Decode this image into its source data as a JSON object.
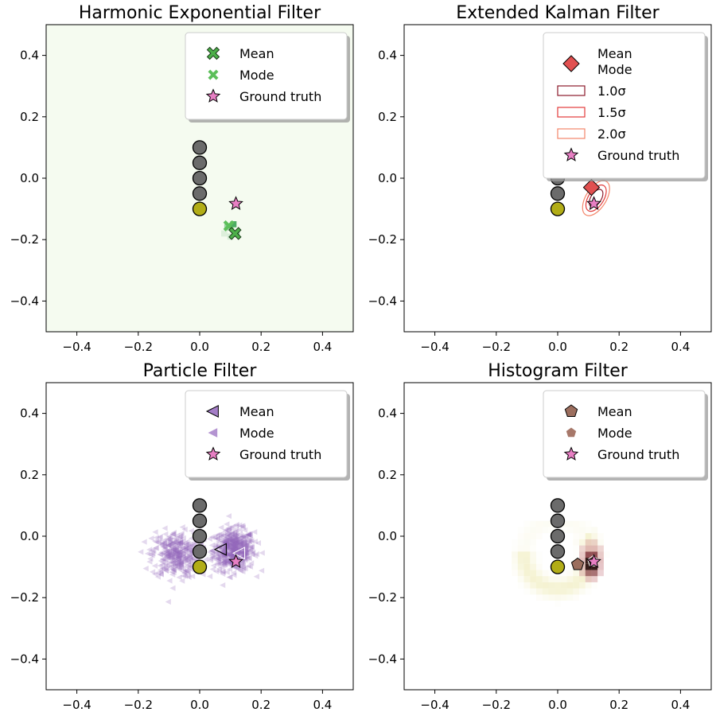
{
  "chart_data": [
    {
      "type": "scatter",
      "title": "Harmonic Exponential Filter",
      "xlim": [
        -0.5,
        0.5
      ],
      "ylim": [
        -0.5,
        0.5
      ],
      "xticks": [
        -0.4,
        -0.2,
        0.0,
        0.2,
        0.4
      ],
      "yticks": [
        -0.4,
        -0.2,
        0.0,
        0.2,
        0.4
      ],
      "tick_labels": [
        "−0.4",
        "−0.2",
        "0.0",
        "0.2",
        "0.4"
      ],
      "background": "#f5fbf0",
      "density": {
        "color": "#2e9e4a",
        "cells": [
          {
            "x": 0.11,
            "y": -0.15,
            "v": 0.85
          },
          {
            "x": 0.09,
            "y": -0.16,
            "v": 0.45
          },
          {
            "x": 0.12,
            "y": -0.18,
            "v": 0.6
          },
          {
            "x": 0.08,
            "y": -0.18,
            "v": 0.12
          },
          {
            "x": 0.1,
            "y": -0.19,
            "v": 0.15
          }
        ]
      },
      "landmarks": [
        {
          "x": 0,
          "y": 0.1
        },
        {
          "x": 0,
          "y": 0.05
        },
        {
          "x": 0,
          "y": 0.0
        },
        {
          "x": 0,
          "y": -0.05
        }
      ],
      "current": {
        "x": 0,
        "y": -0.1
      },
      "mean": {
        "x": 0.115,
        "y": -0.18
      },
      "mode": {
        "x": 0.095,
        "y": -0.155
      },
      "ground_truth": {
        "x": 0.118,
        "y": -0.083
      },
      "colors": {
        "marker": "#4daf4a",
        "gt": "#e77fc3"
      },
      "legend": [
        "Mean",
        "Mode",
        "Ground truth"
      ]
    },
    {
      "type": "scatter",
      "title": "Extended Kalman Filter",
      "xlim": [
        -0.5,
        0.5
      ],
      "ylim": [
        -0.5,
        0.5
      ],
      "xticks": [
        -0.4,
        -0.2,
        0.0,
        0.2,
        0.4
      ],
      "yticks": [
        -0.4,
        -0.2,
        0.0,
        0.2,
        0.4
      ],
      "tick_labels": [
        "−0.4",
        "−0.2",
        "0.0",
        "0.2",
        "0.4"
      ],
      "landmarks": [
        {
          "x": 0,
          "y": 0.0
        },
        {
          "x": 0,
          "y": -0.05
        }
      ],
      "current": {
        "x": 0,
        "y": -0.1
      },
      "mean": {
        "x": 0.11,
        "y": -0.03
      },
      "ground_truth": {
        "x": 0.118,
        "y": -0.083
      },
      "ellipses": [
        {
          "label": "1.0σ",
          "cx": 0.125,
          "cy": -0.065,
          "rx": 0.032,
          "ry": 0.017,
          "angle": -58,
          "color": "#8b1a2b"
        },
        {
          "label": "1.5σ",
          "cx": 0.125,
          "cy": -0.065,
          "rx": 0.048,
          "ry": 0.025,
          "angle": -58,
          "color": "#e23b3b"
        },
        {
          "label": "2.0σ",
          "cx": 0.125,
          "cy": -0.065,
          "rx": 0.064,
          "ry": 0.033,
          "angle": -58,
          "color": "#f4866a"
        }
      ],
      "colors": {
        "marker": "#e15050",
        "gt": "#e77fc3"
      },
      "legend": [
        "Mean",
        "Mode",
        "1.0σ",
        "1.5σ",
        "2.0σ",
        "Ground truth"
      ]
    },
    {
      "type": "scatter",
      "title": "Particle Filter",
      "xlim": [
        -0.5,
        0.5
      ],
      "ylim": [
        -0.5,
        0.5
      ],
      "xticks": [
        -0.4,
        -0.2,
        0.0,
        0.2,
        0.4
      ],
      "yticks": [
        -0.4,
        -0.2,
        0.0,
        0.2,
        0.4
      ],
      "tick_labels": [
        "−0.4",
        "−0.2",
        "0.0",
        "0.2",
        "0.4"
      ],
      "particle_clouds": [
        {
          "cx": 0.11,
          "cy": -0.045,
          "r": 0.075,
          "n": 520
        },
        {
          "cx": -0.08,
          "cy": -0.06,
          "r": 0.085,
          "n": 340
        }
      ],
      "landmarks": [
        {
          "x": 0,
          "y": 0.1
        },
        {
          "x": 0,
          "y": 0.05
        },
        {
          "x": 0,
          "y": 0.0
        },
        {
          "x": 0,
          "y": -0.05
        }
      ],
      "current": {
        "x": 0,
        "y": -0.1
      },
      "mean": {
        "x": 0.07,
        "y": -0.043
      },
      "mode": {
        "x": 0.13,
        "y": -0.055
      },
      "ground_truth": {
        "x": 0.118,
        "y": -0.083
      },
      "colors": {
        "marker": "#9467bd",
        "gt": "#e77fc3"
      },
      "legend": [
        "Mean",
        "Mode",
        "Ground truth"
      ]
    },
    {
      "type": "heatmap",
      "title": "Histogram Filter",
      "xlim": [
        -0.5,
        0.5
      ],
      "ylim": [
        -0.5,
        0.5
      ],
      "xticks": [
        -0.4,
        -0.2,
        0.0,
        0.2,
        0.4
      ],
      "yticks": [
        -0.4,
        -0.2,
        0.0,
        0.2,
        0.4
      ],
      "tick_labels": [
        "−0.4",
        "−0.2",
        "0.0",
        "0.2",
        "0.4"
      ],
      "landmarks": [
        {
          "x": 0,
          "y": 0.1
        },
        {
          "x": 0,
          "y": 0.05
        },
        {
          "x": 0,
          "y": 0.0
        },
        {
          "x": 0,
          "y": -0.05
        }
      ],
      "current": {
        "x": 0,
        "y": -0.1
      },
      "mean": {
        "x": 0.065,
        "y": -0.092
      },
      "mode": {
        "x": 0.115,
        "y": -0.082
      },
      "ground_truth": {
        "x": 0.118,
        "y": -0.083
      },
      "colors": {
        "marker": "#9c6e5e",
        "gt": "#e77fc3"
      },
      "legend": [
        "Mean",
        "Mode",
        "Ground truth"
      ]
    }
  ]
}
